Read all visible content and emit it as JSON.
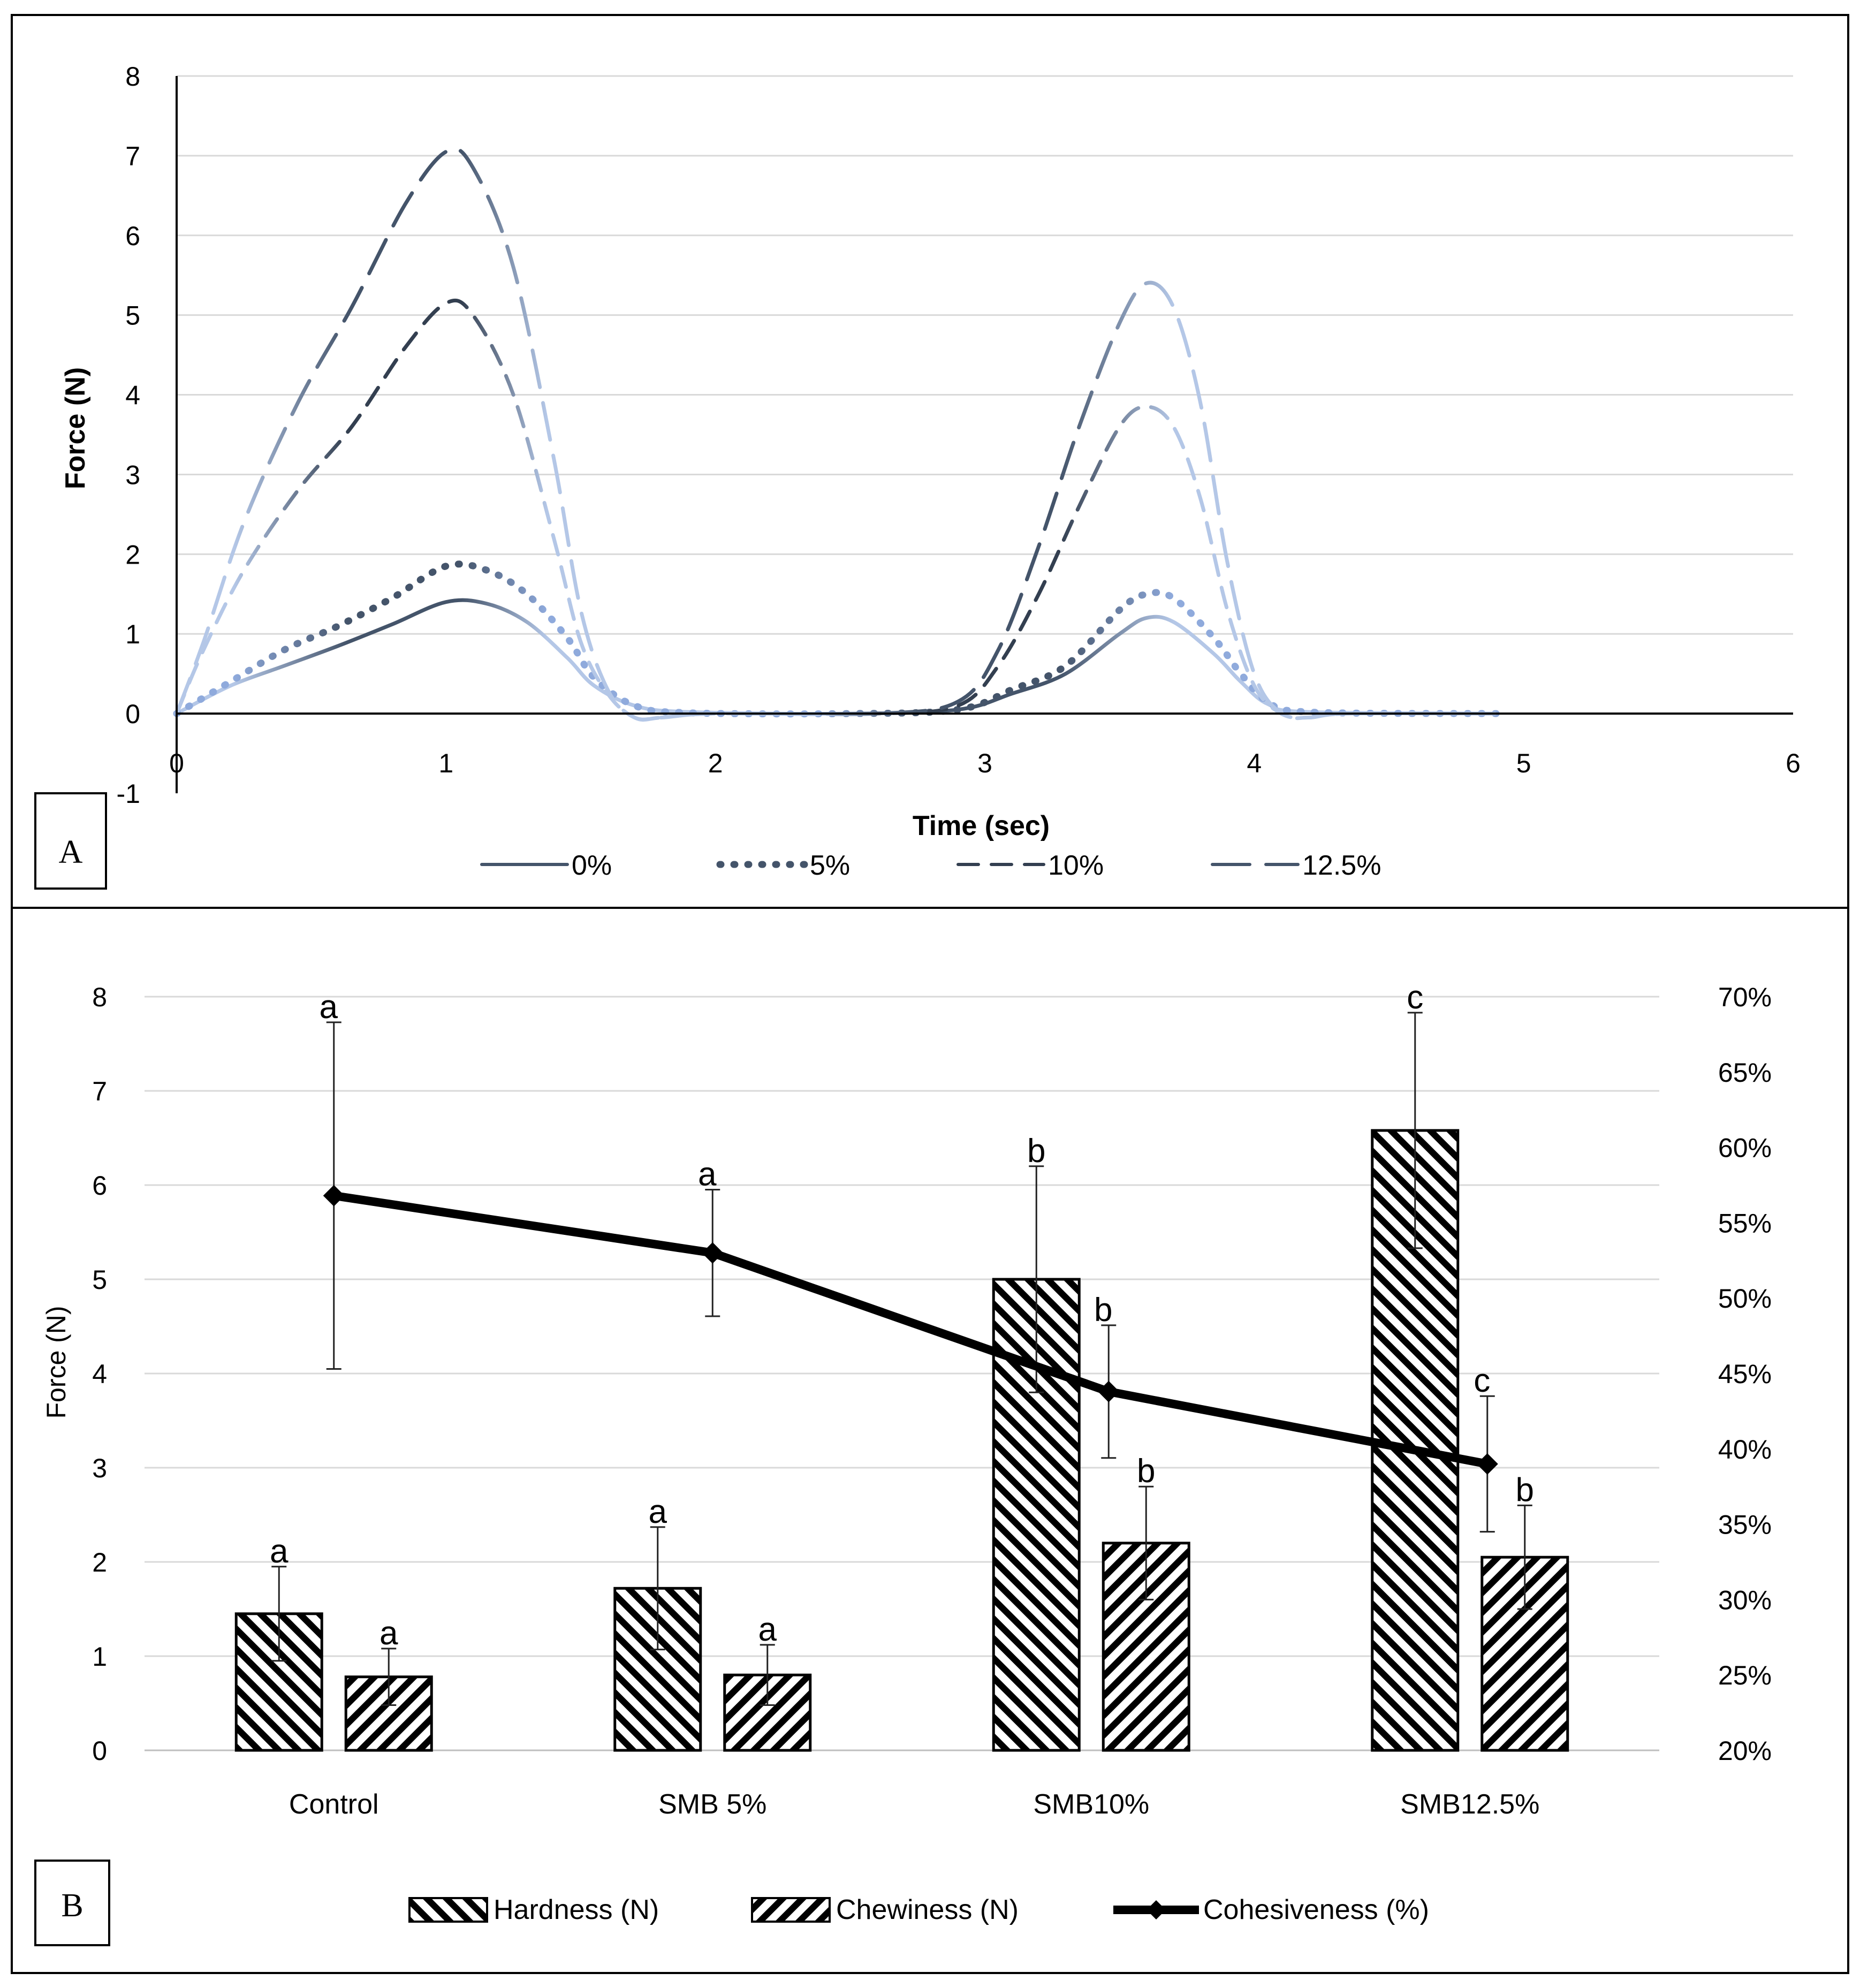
{
  "chart_data": [
    {
      "panel": "A",
      "type": "line",
      "xlabel": "Time (sec)",
      "ylabel": "Force (N)",
      "xlim": [
        0,
        6
      ],
      "ylim": [
        -1,
        8
      ],
      "x_ticks": [
        "0",
        "1",
        "2",
        "3",
        "4",
        "5",
        "6"
      ],
      "y_ticks": [
        "-1",
        "0",
        "1",
        "2",
        "3",
        "4",
        "5",
        "6",
        "7",
        "8"
      ],
      "gridlines": true,
      "legend_position": "bottom",
      "series": [
        {
          "name": "0%",
          "style": "solid",
          "color_dark": "#44546a",
          "color_light": "#b4c7e7",
          "points": [
            [
              0,
              0
            ],
            [
              0.2,
              0.35
            ],
            [
              0.4,
              0.6
            ],
            [
              0.6,
              0.85
            ],
            [
              0.8,
              1.12
            ],
            [
              1.0,
              1.4
            ],
            [
              1.15,
              1.38
            ],
            [
              1.3,
              1.15
            ],
            [
              1.45,
              0.7
            ],
            [
              1.55,
              0.35
            ],
            [
              1.7,
              0.1
            ],
            [
              1.9,
              0.02
            ],
            [
              2.5,
              0.0
            ],
            [
              2.9,
              0.05
            ],
            [
              3.1,
              0.25
            ],
            [
              3.3,
              0.5
            ],
            [
              3.5,
              1.0
            ],
            [
              3.6,
              1.2
            ],
            [
              3.7,
              1.15
            ],
            [
              3.85,
              0.75
            ],
            [
              3.95,
              0.4
            ],
            [
              4.05,
              0.12
            ],
            [
              4.2,
              0.02
            ],
            [
              4.9,
              0.0
            ]
          ]
        },
        {
          "name": "5%",
          "style": "dotted",
          "color_dark": "#44546a",
          "color_light": "#8faadc",
          "points": [
            [
              0,
              0
            ],
            [
              0.2,
              0.4
            ],
            [
              0.4,
              0.8
            ],
            [
              0.6,
              1.1
            ],
            [
              0.8,
              1.45
            ],
            [
              1.0,
              1.85
            ],
            [
              1.15,
              1.8
            ],
            [
              1.3,
              1.5
            ],
            [
              1.45,
              0.95
            ],
            [
              1.55,
              0.45
            ],
            [
              1.7,
              0.1
            ],
            [
              1.9,
              0.01
            ],
            [
              2.5,
              0.0
            ],
            [
              2.9,
              0.05
            ],
            [
              3.1,
              0.3
            ],
            [
              3.3,
              0.6
            ],
            [
              3.5,
              1.3
            ],
            [
              3.6,
              1.5
            ],
            [
              3.7,
              1.45
            ],
            [
              3.85,
              0.95
            ],
            [
              3.95,
              0.5
            ],
            [
              4.05,
              0.15
            ],
            [
              4.2,
              0.02
            ],
            [
              4.9,
              0.0
            ]
          ]
        },
        {
          "name": "10%",
          "style": "dashed",
          "color_dark": "#333f50",
          "color_light": "#b4c7e7",
          "points": [
            [
              0,
              0
            ],
            [
              0.1,
              0.8
            ],
            [
              0.25,
              1.8
            ],
            [
              0.45,
              2.8
            ],
            [
              0.65,
              3.6
            ],
            [
              0.85,
              4.6
            ],
            [
              1.0,
              5.15
            ],
            [
              1.1,
              5.0
            ],
            [
              1.25,
              4.0
            ],
            [
              1.4,
              2.2
            ],
            [
              1.5,
              0.9
            ],
            [
              1.6,
              0.25
            ],
            [
              1.7,
              -0.05
            ],
            [
              1.8,
              -0.05
            ],
            [
              2.0,
              0.0
            ],
            [
              2.6,
              0.0
            ],
            [
              2.9,
              0.1
            ],
            [
              3.05,
              0.6
            ],
            [
              3.2,
              1.5
            ],
            [
              3.35,
              2.6
            ],
            [
              3.5,
              3.6
            ],
            [
              3.6,
              3.85
            ],
            [
              3.7,
              3.6
            ],
            [
              3.8,
              2.7
            ],
            [
              3.9,
              1.3
            ],
            [
              4.0,
              0.35
            ],
            [
              4.1,
              0.0
            ],
            [
              4.2,
              -0.05
            ],
            [
              4.35,
              0.0
            ],
            [
              4.9,
              0.0
            ]
          ]
        },
        {
          "name": "12.5%",
          "style": "longdash",
          "color_dark": "#44546a",
          "color_light": "#b4c7e7",
          "points": [
            [
              0,
              0
            ],
            [
              0.1,
              0.9
            ],
            [
              0.25,
              2.4
            ],
            [
              0.45,
              3.9
            ],
            [
              0.65,
              5.1
            ],
            [
              0.85,
              6.4
            ],
            [
              1.0,
              7.05
            ],
            [
              1.1,
              6.85
            ],
            [
              1.25,
              5.6
            ],
            [
              1.4,
              3.2
            ],
            [
              1.5,
              1.3
            ],
            [
              1.6,
              0.3
            ],
            [
              1.7,
              -0.05
            ],
            [
              1.8,
              -0.05
            ],
            [
              2.0,
              0.0
            ],
            [
              2.6,
              0.0
            ],
            [
              2.9,
              0.15
            ],
            [
              3.05,
              0.8
            ],
            [
              3.2,
              2.1
            ],
            [
              3.35,
              3.6
            ],
            [
              3.5,
              4.9
            ],
            [
              3.6,
              5.4
            ],
            [
              3.7,
              5.1
            ],
            [
              3.8,
              3.9
            ],
            [
              3.9,
              1.9
            ],
            [
              4.0,
              0.5
            ],
            [
              4.1,
              0.0
            ],
            [
              4.2,
              -0.05
            ],
            [
              4.35,
              0.0
            ],
            [
              4.9,
              0.0
            ]
          ]
        }
      ]
    },
    {
      "panel": "B",
      "type": "bar",
      "categories": [
        "Control",
        "SMB 5%",
        "SMB10%",
        "SMB12.5%"
      ],
      "ylabel": "Force (N)",
      "ylim": [
        0,
        8
      ],
      "y_ticks": [
        "0",
        "1",
        "2",
        "3",
        "4",
        "5",
        "6",
        "7",
        "8"
      ],
      "y2lim": [
        20,
        70
      ],
      "y2_ticks": [
        "20%",
        "25%",
        "30%",
        "35%",
        "40%",
        "45%",
        "50%",
        "55%",
        "60%",
        "65%",
        "70%"
      ],
      "gridlines": true,
      "legend_position": "bottom",
      "series": [
        {
          "name": "Hardness (N)",
          "kind": "bar",
          "pattern": "back-diagonal",
          "values": [
            1.45,
            1.72,
            5.0,
            6.58
          ],
          "errors": [
            0.5,
            0.65,
            1.2,
            1.25
          ],
          "letters": [
            "a",
            "a",
            "b",
            "c"
          ]
        },
        {
          "name": "Chewiness (N)",
          "kind": "bar",
          "pattern": "forward-diagonal",
          "values": [
            0.78,
            0.8,
            2.2,
            2.05
          ],
          "errors": [
            0.3,
            0.32,
            0.6,
            0.55
          ],
          "letters": [
            "a",
            "a",
            "b",
            "b"
          ]
        },
        {
          "name": "Cohesiveness (%)",
          "kind": "line",
          "axis": "right",
          "values": [
            56.8,
            53.0,
            43.8,
            39.0
          ],
          "errors": [
            11.5,
            4.2,
            4.4,
            4.5
          ],
          "letters": [
            "a",
            "a",
            "b",
            "c"
          ]
        }
      ]
    }
  ],
  "panel_labels": {
    "a": "A",
    "b": "B"
  },
  "colors": {
    "frame": "#000000",
    "grid": "#d9d9d9",
    "axis_text": "#000000"
  }
}
